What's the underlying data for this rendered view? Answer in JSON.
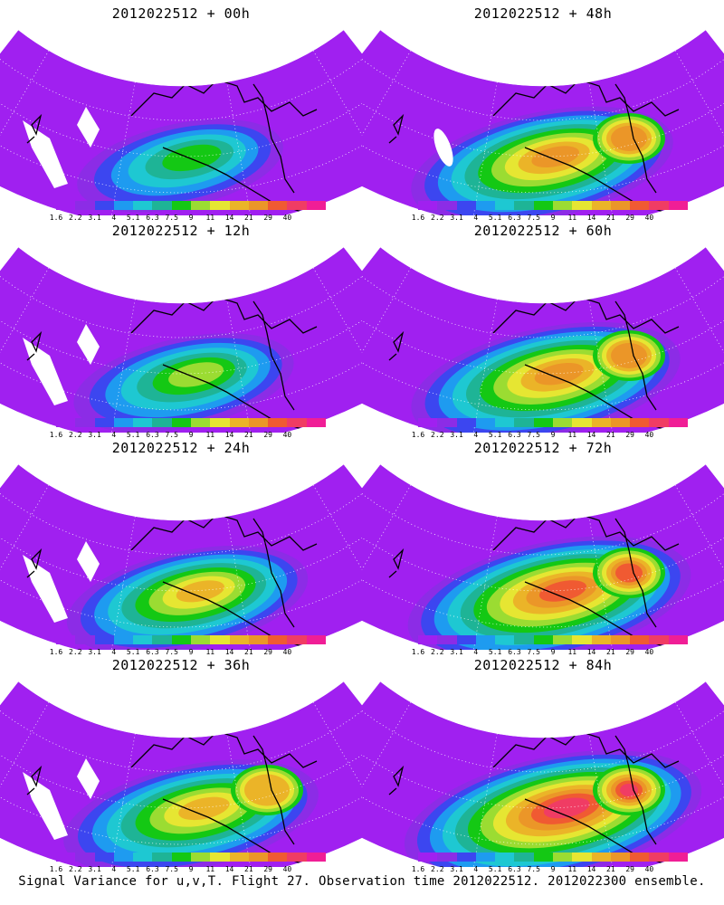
{
  "caption": "Signal Variance for u,v,T. Flight 27. Observation time 2012022512. 2012022300 ensemble.",
  "colorbar": {
    "labels": [
      "1.6",
      "2.2",
      "3.1",
      "4",
      "5.1",
      "6.3",
      "7.5",
      "9",
      "11",
      "14",
      "21",
      "29",
      "40"
    ],
    "colors": [
      "#a020f0",
      "#8c2ce6",
      "#3c46f0",
      "#1e9bf0",
      "#1ec8d2",
      "#1eb496",
      "#14c814",
      "#9bdc32",
      "#e6e632",
      "#ebb428",
      "#eb9628",
      "#f05a32",
      "#f03c64",
      "#f01e96"
    ]
  },
  "panels": [
    {
      "id": "00h",
      "title": "2012022512 + 00h",
      "intensity": 0.25
    },
    {
      "id": "12h",
      "title": "2012022512 + 12h",
      "intensity": 0.35
    },
    {
      "id": "24h",
      "title": "2012022512 + 24h",
      "intensity": 0.5
    },
    {
      "id": "36h",
      "title": "2012022512 + 36h",
      "intensity": 0.6
    },
    {
      "id": "48h",
      "title": "2012022512 + 48h",
      "intensity": 0.65
    },
    {
      "id": "60h",
      "title": "2012022512 + 60h",
      "intensity": 0.7
    },
    {
      "id": "72h",
      "title": "2012022512 + 72h",
      "intensity": 0.8
    },
    {
      "id": "84h",
      "title": "2012022512 + 84h",
      "intensity": 0.9
    }
  ]
}
